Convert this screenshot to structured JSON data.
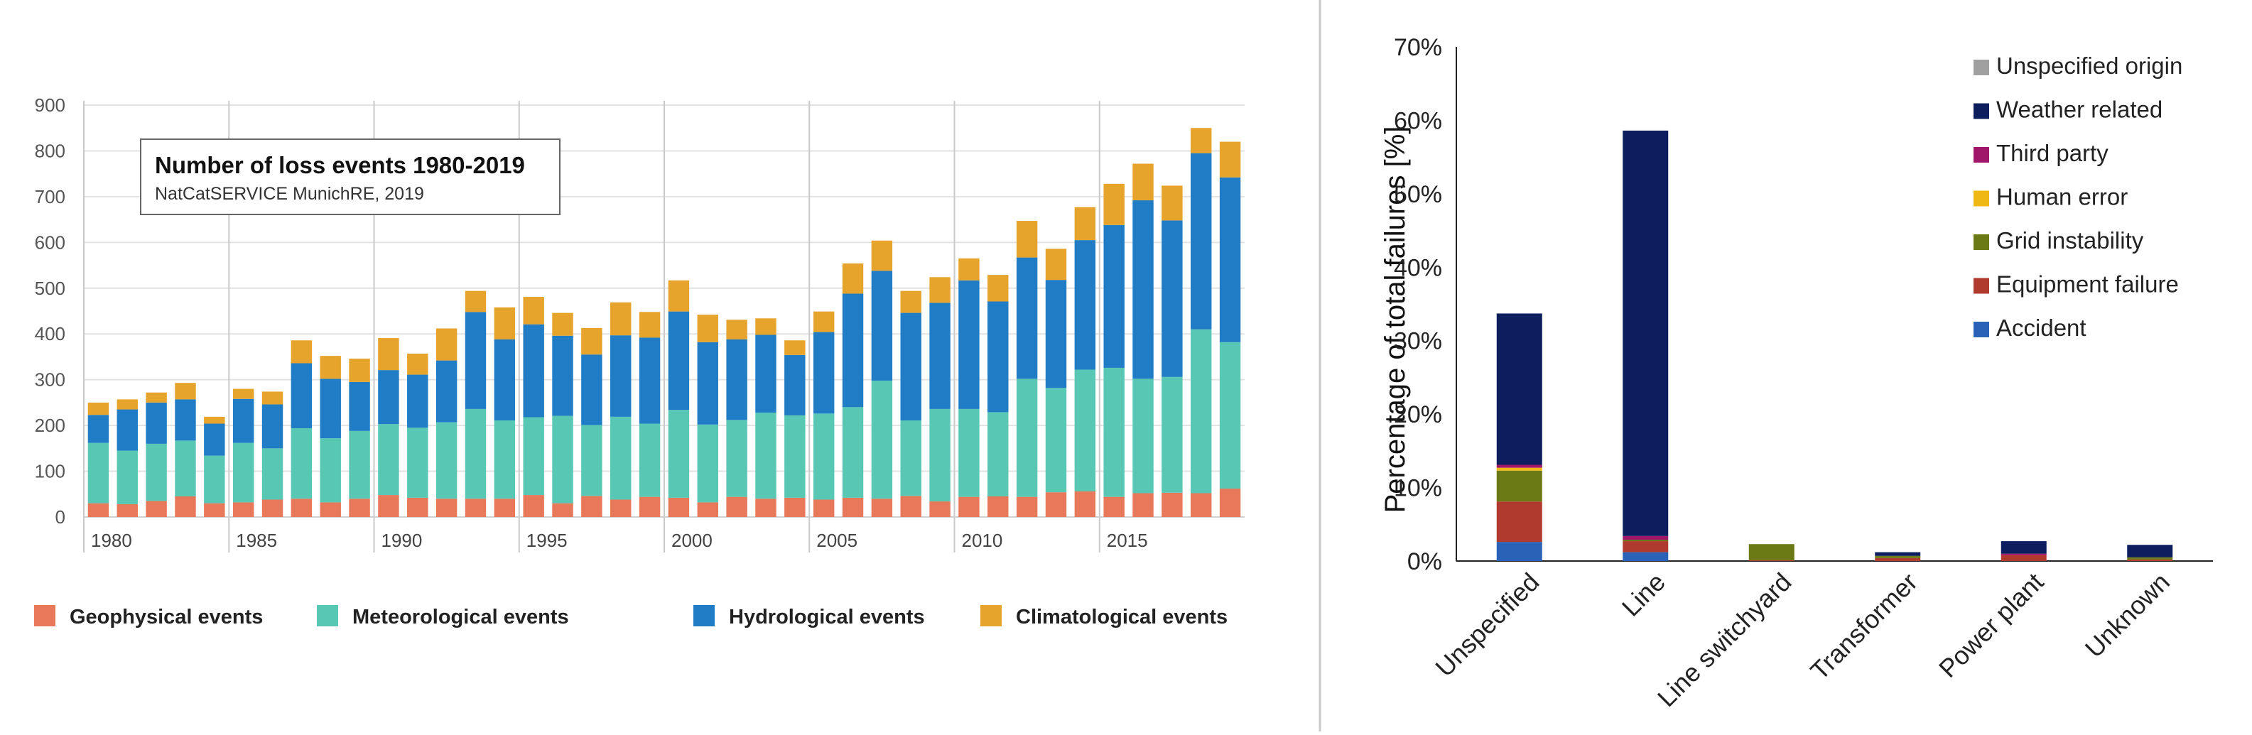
{
  "chart_data": [
    {
      "type": "bar",
      "stacked": true,
      "title": "Number of loss events 1980-2019",
      "subtitle": "NatCatSERVICE MunichRE, 2019",
      "years": [
        1980,
        1981,
        1982,
        1983,
        1984,
        1985,
        1986,
        1987,
        1988,
        1989,
        1990,
        1991,
        1992,
        1993,
        1994,
        1995,
        1996,
        1997,
        1998,
        1999,
        2000,
        2001,
        2002,
        2003,
        2004,
        2005,
        2006,
        2007,
        2008,
        2009,
        2010,
        2011,
        2012,
        2013,
        2014,
        2015,
        2016,
        2017,
        2018,
        2019
      ],
      "x_tick_labels": [
        "1980",
        "1985",
        "1990",
        "1995",
        "2000",
        "2005",
        "2010",
        "2015"
      ],
      "y_ticks": [
        "0",
        "100",
        "200",
        "300",
        "400",
        "500",
        "600",
        "700",
        "800",
        "900"
      ],
      "ylim": [
        0,
        900
      ],
      "grid": true,
      "legend_position": "bottom",
      "series": [
        {
          "name": "Geophysical events",
          "color": "#e8785a",
          "values": [
            30,
            28,
            35,
            45,
            30,
            32,
            38,
            40,
            32,
            40,
            48,
            42,
            40,
            40,
            40,
            48,
            30,
            46,
            38,
            44,
            42,
            32,
            44,
            40,
            42,
            38,
            42,
            40,
            46,
            34,
            44,
            45,
            44,
            54,
            56,
            44,
            52,
            53,
            52,
            62
          ]
        },
        {
          "name": "Meteorological events",
          "color": "#58c8b4",
          "values": [
            132,
            117,
            125,
            122,
            104,
            130,
            112,
            154,
            140,
            148,
            155,
            153,
            167,
            196,
            171,
            170,
            191,
            155,
            181,
            160,
            192,
            170,
            168,
            188,
            180,
            188,
            198,
            258,
            165,
            202,
            192,
            184,
            258,
            228,
            266,
            282,
            250,
            253,
            358,
            320
          ]
        },
        {
          "name": "Hydrological events",
          "color": "#1f7cc5",
          "values": [
            61,
            90,
            90,
            90,
            70,
            96,
            96,
            142,
            130,
            107,
            118,
            116,
            135,
            212,
            177,
            203,
            175,
            154,
            178,
            188,
            215,
            180,
            176,
            170,
            132,
            178,
            248,
            240,
            235,
            232,
            281,
            242,
            265,
            236,
            283,
            312,
            390,
            342,
            385,
            360
          ]
        },
        {
          "name": "Climatological events",
          "color": "#e6a42c",
          "values": [
            27,
            22,
            22,
            36,
            15,
            22,
            28,
            50,
            50,
            51,
            70,
            46,
            70,
            46,
            70,
            60,
            50,
            58,
            72,
            56,
            68,
            60,
            43,
            36,
            32,
            45,
            66,
            66,
            48,
            56,
            48,
            58,
            80,
            68,
            72,
            90,
            80,
            76,
            55,
            78
          ]
        }
      ]
    },
    {
      "type": "bar",
      "stacked": true,
      "ylabel": "Percentage of total failures [%]",
      "categories": [
        "Unspecified",
        "Line",
        "Line switchyard",
        "Transformer",
        "Power plant",
        "Unknown"
      ],
      "y_ticks": [
        "0%",
        "10%",
        "20%",
        "30%",
        "40%",
        "50%",
        "60%",
        "70%"
      ],
      "ylim": [
        0,
        70
      ],
      "grid": false,
      "legend_position": "top-right",
      "series": [
        {
          "name": "Accident",
          "color": "#2a62b8",
          "values": [
            2.6,
            1.2,
            0,
            0,
            0,
            0
          ]
        },
        {
          "name": "Equipment failure",
          "color": "#b03a2e",
          "values": [
            5.5,
            1.5,
            0.1,
            0.4,
            0.8,
            0.2
          ]
        },
        {
          "name": "Grid instability",
          "color": "#6b7a14",
          "values": [
            4.2,
            0.2,
            2.2,
            0.3,
            0,
            0.3
          ]
        },
        {
          "name": "Human error",
          "color": "#f0b814",
          "values": [
            0.4,
            0,
            0,
            0,
            0,
            0
          ]
        },
        {
          "name": "Third party",
          "color": "#a0176a",
          "values": [
            0.4,
            0.5,
            0,
            0,
            0.2,
            0
          ]
        },
        {
          "name": "Weather related",
          "color": "#0c1e5e",
          "values": [
            20.6,
            55.2,
            0,
            0.5,
            1.7,
            1.7
          ]
        },
        {
          "name": "Unspecified origin",
          "color": "#a0a0a0",
          "values": [
            0,
            0,
            0,
            0,
            0,
            0
          ]
        }
      ],
      "legend_order": [
        "Unspecified origin",
        "Weather related",
        "Third party",
        "Human error",
        "Grid instability",
        "Equipment failure",
        "Accident"
      ]
    }
  ]
}
